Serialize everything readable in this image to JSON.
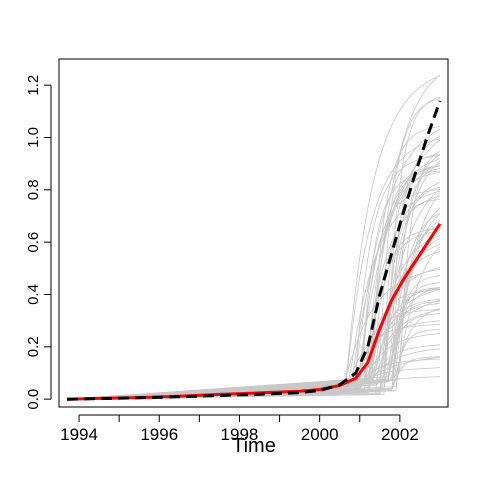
{
  "chart_data": {
    "type": "line",
    "title": "",
    "xlabel": "Time",
    "ylabel": "",
    "xlim": [
      1993.5,
      2003.2
    ],
    "ylim": [
      -0.03,
      1.3
    ],
    "x_ticks": [
      1994,
      1996,
      1998,
      2000,
      2002
    ],
    "x_minor_ticks": [
      1995,
      1997,
      1999,
      2001
    ],
    "y_ticks": [
      0.0,
      0.2,
      0.4,
      0.6,
      0.8,
      1.0,
      1.2
    ],
    "grid": false,
    "legend": "none",
    "series": [
      {
        "style": "solid",
        "color": "#ff0000",
        "x": [
          1993.7,
          1994.5,
          1995.5,
          1996.5,
          1997.5,
          1998.5,
          1999.5,
          2000.0,
          2000.5,
          2000.9,
          2001.2,
          2001.5,
          2001.8,
          2002.1,
          2002.4,
          2002.7,
          2003.0
        ],
        "y": [
          0.0,
          0.003,
          0.006,
          0.011,
          0.018,
          0.024,
          0.03,
          0.037,
          0.052,
          0.08,
          0.14,
          0.27,
          0.38,
          0.46,
          0.53,
          0.6,
          0.67
        ]
      },
      {
        "style": "dashed",
        "color": "#000000",
        "x": [
          1993.7,
          1994.5,
          1995.5,
          1996.5,
          1997.5,
          1998.5,
          1999.5,
          2000.0,
          2000.5,
          2000.9,
          2001.2,
          2001.5,
          2001.8,
          2002.1,
          2002.4,
          2002.7,
          2003.0
        ],
        "y": [
          0.0,
          0.002,
          0.005,
          0.009,
          0.014,
          0.019,
          0.025,
          0.033,
          0.055,
          0.1,
          0.2,
          0.4,
          0.56,
          0.72,
          0.87,
          1.01,
          1.14
        ]
      }
    ],
    "background_lines": {
      "color": "#c8c8c8",
      "count": 70
    }
  }
}
